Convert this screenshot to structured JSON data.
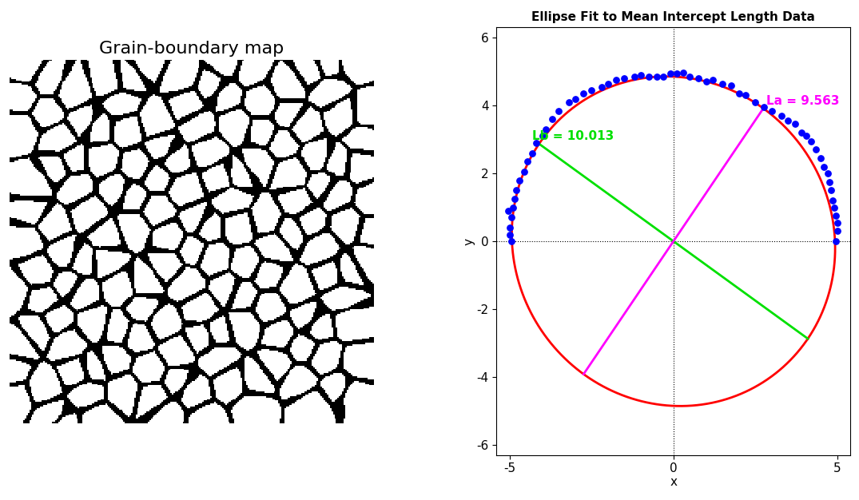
{
  "image": {
    "title": "Grain-boundary map"
  },
  "chart_data": {
    "type": "scatter",
    "title": "Ellipse Fit to Mean Intercept Length Data",
    "x_label": "x",
    "y_label": "y",
    "xlim": [
      -5.4,
      5.4
    ],
    "ylim": [
      -6.3,
      6.3
    ],
    "xticks": [
      -5,
      0,
      5
    ],
    "yticks": [
      -6,
      -4,
      -2,
      0,
      2,
      4,
      6
    ],
    "grid": false,
    "points": {
      "color": "#0000ff",
      "marker": "o",
      "x": [
        4.95,
        5.0,
        5.0,
        4.95,
        4.9,
        4.85,
        4.8,
        4.75,
        4.7,
        4.6,
        4.5,
        4.35,
        4.2,
        4.05,
        3.9,
        3.7,
        3.5,
        3.3,
        3.0,
        2.75,
        2.5,
        2.2,
        2.0,
        1.75,
        1.5,
        1.2,
        1.0,
        0.75,
        0.5,
        0.3,
        0.1,
        -0.1,
        -0.3,
        -0.5,
        -0.75,
        -1.0,
        -1.2,
        -1.5,
        -1.75,
        -2.0,
        -2.2,
        -2.5,
        -2.75,
        -3.0,
        -3.2,
        -3.5,
        -3.7,
        -3.9,
        -4.0,
        -4.2,
        -4.3,
        -4.45,
        -4.55,
        -4.7,
        -4.8,
        -4.85,
        -4.9,
        -4.95,
        -5.0,
        -5.0,
        -4.95,
        -5.05
      ],
      "y": [
        0.0,
        0.3,
        0.55,
        0.75,
        1.0,
        1.2,
        1.5,
        1.75,
        2.0,
        2.2,
        2.45,
        2.7,
        2.95,
        3.1,
        3.2,
        3.45,
        3.55,
        3.7,
        3.85,
        3.95,
        4.1,
        4.3,
        4.35,
        4.6,
        4.65,
        4.75,
        4.7,
        4.8,
        4.85,
        4.97,
        4.95,
        4.95,
        4.85,
        4.85,
        4.85,
        4.9,
        4.85,
        4.8,
        4.75,
        4.65,
        4.55,
        4.45,
        4.35,
        4.2,
        4.1,
        3.85,
        3.6,
        3.3,
        3.1,
        2.9,
        2.6,
        2.35,
        2.05,
        1.8,
        1.5,
        1.25,
        1.0,
        0.7,
        0.4,
        0.2,
        0.0,
        0.9
      ]
    },
    "ellipse": {
      "color": "#ff0000",
      "center": [
        0,
        0
      ],
      "major_axis_angle": -35,
      "La": 9.563,
      "La_label": "La = 9.563",
      "La_color": "#ff00ff",
      "Lb": 10.013,
      "Lb_label": "Lb = 10.013",
      "Lb_color": "#00e000"
    }
  }
}
